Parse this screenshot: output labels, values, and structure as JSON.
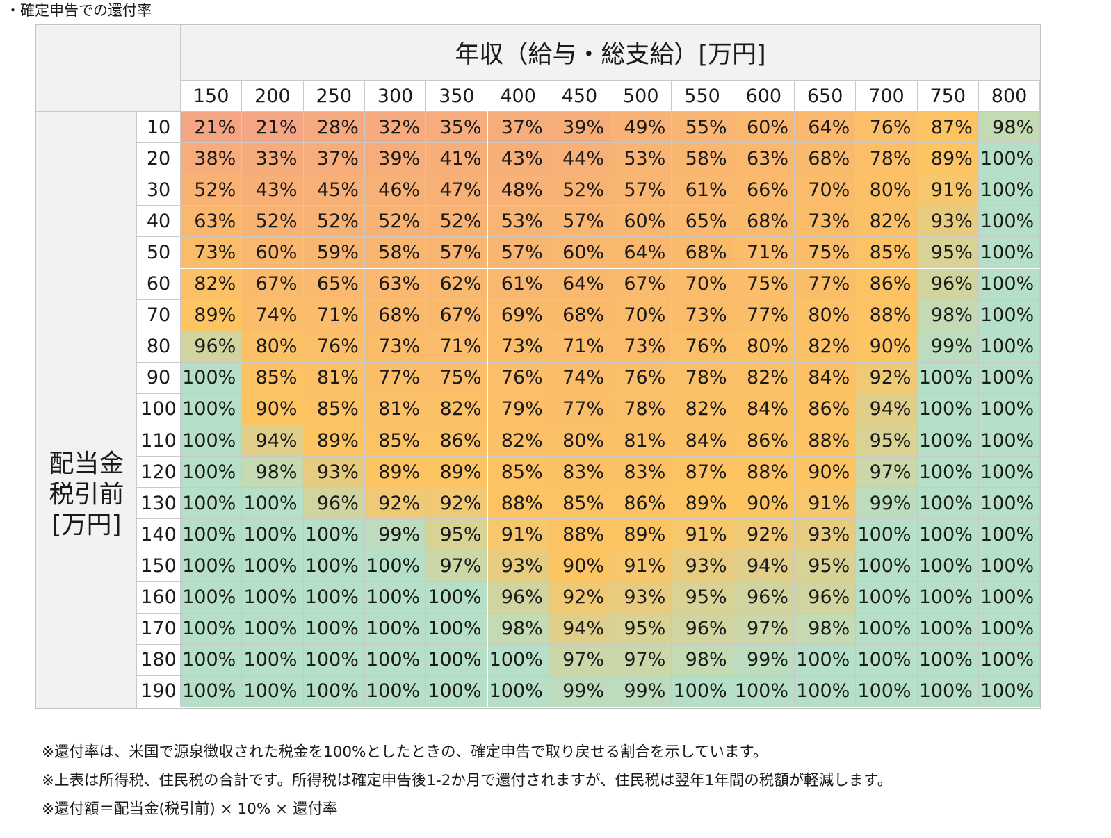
{
  "title": "・確定申告での還付率",
  "chart_data": {
    "type": "heatmap",
    "col_header": "年収（給与・総支給）[万円]",
    "row_header_lines": [
      "配当金",
      "税引前",
      "[万円]"
    ],
    "columns": [
      "150",
      "200",
      "250",
      "300",
      "350",
      "400",
      "450",
      "500",
      "550",
      "600",
      "650",
      "700",
      "750",
      "800"
    ],
    "rows": [
      "10",
      "20",
      "30",
      "40",
      "50",
      "60",
      "70",
      "80",
      "90",
      "100",
      "110",
      "120",
      "130",
      "140",
      "150",
      "160",
      "170",
      "180",
      "190"
    ],
    "values": [
      [
        21,
        21,
        28,
        32,
        35,
        37,
        39,
        49,
        55,
        60,
        64,
        76,
        87,
        98
      ],
      [
        38,
        33,
        37,
        39,
        41,
        43,
        44,
        53,
        58,
        63,
        68,
        78,
        89,
        100
      ],
      [
        52,
        43,
        45,
        46,
        47,
        48,
        52,
        57,
        61,
        66,
        70,
        80,
        91,
        100
      ],
      [
        63,
        52,
        52,
        52,
        52,
        53,
        57,
        60,
        65,
        68,
        73,
        82,
        93,
        100
      ],
      [
        73,
        60,
        59,
        58,
        57,
        57,
        60,
        64,
        68,
        71,
        75,
        85,
        95,
        100
      ],
      [
        82,
        67,
        65,
        63,
        62,
        61,
        64,
        67,
        70,
        75,
        77,
        86,
        96,
        100
      ],
      [
        89,
        74,
        71,
        68,
        67,
        69,
        68,
        70,
        73,
        77,
        80,
        88,
        98,
        100
      ],
      [
        96,
        80,
        76,
        73,
        71,
        73,
        71,
        73,
        76,
        80,
        82,
        90,
        99,
        100
      ],
      [
        100,
        85,
        81,
        77,
        75,
        76,
        74,
        76,
        78,
        82,
        84,
        92,
        100,
        100
      ],
      [
        100,
        90,
        85,
        81,
        82,
        79,
        77,
        78,
        82,
        84,
        86,
        94,
        100,
        100
      ],
      [
        100,
        94,
        89,
        85,
        86,
        82,
        80,
        81,
        84,
        86,
        88,
        95,
        100,
        100
      ],
      [
        100,
        98,
        93,
        89,
        89,
        85,
        83,
        83,
        87,
        88,
        90,
        97,
        100,
        100
      ],
      [
        100,
        100,
        96,
        92,
        92,
        88,
        85,
        86,
        89,
        90,
        91,
        99,
        100,
        100
      ],
      [
        100,
        100,
        100,
        99,
        95,
        91,
        88,
        89,
        91,
        92,
        93,
        100,
        100,
        100
      ],
      [
        100,
        100,
        100,
        100,
        97,
        93,
        90,
        91,
        93,
        94,
        95,
        100,
        100,
        100
      ],
      [
        100,
        100,
        100,
        100,
        100,
        96,
        92,
        93,
        95,
        96,
        96,
        100,
        100,
        100
      ],
      [
        100,
        100,
        100,
        100,
        100,
        98,
        94,
        95,
        96,
        97,
        98,
        100,
        100,
        100
      ],
      [
        100,
        100,
        100,
        100,
        100,
        100,
        97,
        97,
        98,
        99,
        100,
        100,
        100,
        100
      ],
      [
        100,
        100,
        100,
        100,
        100,
        100,
        99,
        99,
        100,
        100,
        100,
        100,
        100,
        100
      ]
    ],
    "value_suffix": "%",
    "colors": {
      "low": "#f4a583",
      "mid": "#fdc462",
      "high": "#b5dfc7"
    }
  },
  "notes": [
    "※還付率は、米国で源泉徴収された税金を100%としたときの、確定申告で取り戻せる割合を示しています。",
    "※上表は所得税、住民税の合計です。所得税は確定申告後1-2か月で還付されますが、住民税は翌年1年間の税額が軽減します。",
    "※還付額＝配当金(税引前) × 10% × 還付率"
  ]
}
